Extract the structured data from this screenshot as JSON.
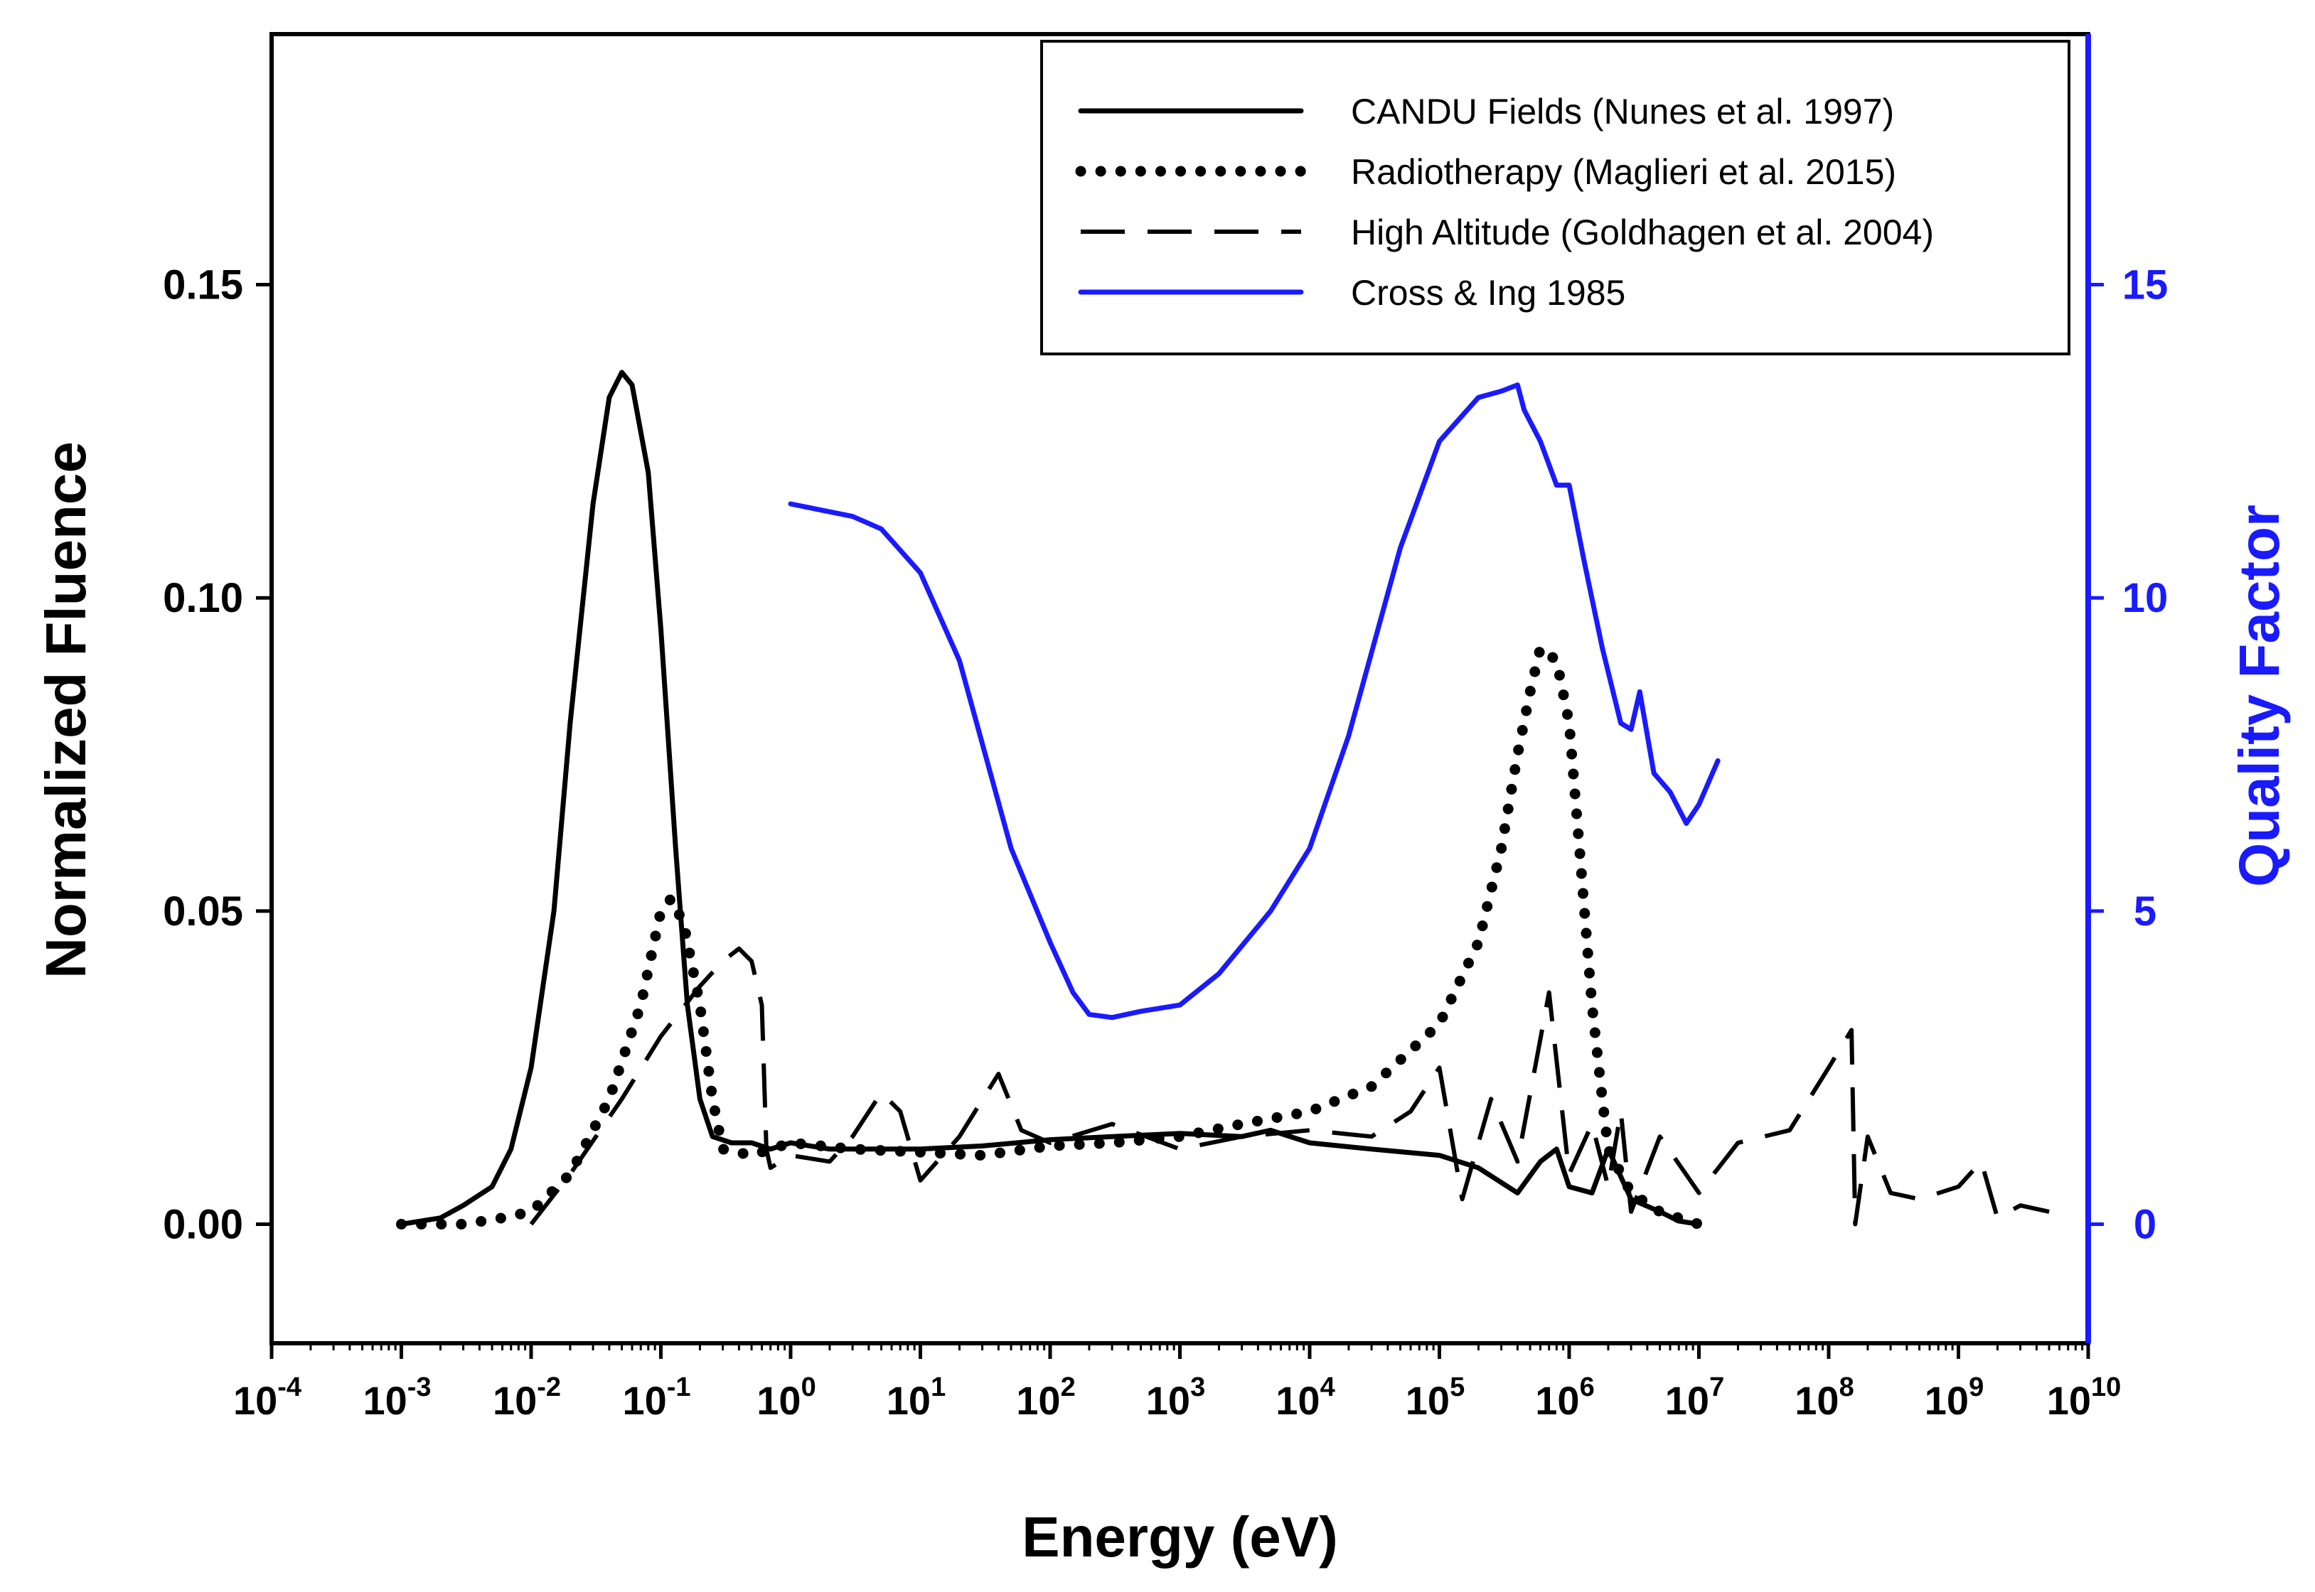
{
  "colors": {
    "axis": "#000000",
    "right_axis": "#1a1aff",
    "quality_factor": "#1a1aff"
  },
  "chart_data": {
    "type": "line",
    "title": "",
    "xlabel": "Energy (eV)",
    "ylabel_left": "Normalized Fluence",
    "ylabel_right": "Quality Factor",
    "x_scale": "log",
    "xlim": [
      0.0001,
      10000000000
    ],
    "ylim_left": [
      -0.019,
      0.19
    ],
    "ylim_right": [
      -1.9,
      19.0
    ],
    "grid": false,
    "legend_position": "top-right",
    "x_ticks": [
      {
        "value": 0.0001,
        "base": "10",
        "exp": "-4"
      },
      {
        "value": 0.001,
        "base": "10",
        "exp": "-3"
      },
      {
        "value": 0.01,
        "base": "10",
        "exp": "-2"
      },
      {
        "value": 0.1,
        "base": "10",
        "exp": "-1"
      },
      {
        "value": 1,
        "base": "10",
        "exp": "0"
      },
      {
        "value": 10,
        "base": "10",
        "exp": "1"
      },
      {
        "value": 100,
        "base": "10",
        "exp": "2"
      },
      {
        "value": 1000,
        "base": "10",
        "exp": "3"
      },
      {
        "value": 10000,
        "base": "10",
        "exp": "4"
      },
      {
        "value": 100000,
        "base": "10",
        "exp": "5"
      },
      {
        "value": 1000000,
        "base": "10",
        "exp": "6"
      },
      {
        "value": 10000000,
        "base": "10",
        "exp": "7"
      },
      {
        "value": 100000000,
        "base": "10",
        "exp": "8"
      },
      {
        "value": 1000000000,
        "base": "10",
        "exp": "9"
      },
      {
        "value": 10000000000,
        "base": "10",
        "exp": "10"
      }
    ],
    "y_left_ticks": [
      {
        "value": 0.0,
        "label": "0.00"
      },
      {
        "value": 0.05,
        "label": "0.05"
      },
      {
        "value": 0.1,
        "label": "0.10"
      },
      {
        "value": 0.15,
        "label": "0.15"
      }
    ],
    "y_right_ticks": [
      {
        "value": 0,
        "label": "0"
      },
      {
        "value": 5,
        "label": "5"
      },
      {
        "value": 10,
        "label": "10"
      },
      {
        "value": 15,
        "label": "15"
      }
    ],
    "series": [
      {
        "name": "CANDU Fields (Nunes et al. 1997)",
        "axis": "left",
        "style": "solid",
        "color": "#000000",
        "points": [
          [
            0.001,
            0.0
          ],
          [
            0.002,
            0.001
          ],
          [
            0.003,
            0.003
          ],
          [
            0.005,
            0.006
          ],
          [
            0.007,
            0.012
          ],
          [
            0.01,
            0.025
          ],
          [
            0.015,
            0.05
          ],
          [
            0.02,
            0.08
          ],
          [
            0.03,
            0.115
          ],
          [
            0.04,
            0.132
          ],
          [
            0.05,
            0.136
          ],
          [
            0.06,
            0.134
          ],
          [
            0.08,
            0.12
          ],
          [
            0.1,
            0.095
          ],
          [
            0.13,
            0.06
          ],
          [
            0.16,
            0.035
          ],
          [
            0.2,
            0.02
          ],
          [
            0.25,
            0.014
          ],
          [
            0.35,
            0.013
          ],
          [
            0.5,
            0.013
          ],
          [
            0.7,
            0.012
          ],
          [
            1,
            0.013
          ],
          [
            2,
            0.012
          ],
          [
            5,
            0.012
          ],
          [
            10,
            0.012
          ],
          [
            30,
            0.0125
          ],
          [
            100,
            0.0135
          ],
          [
            300,
            0.014
          ],
          [
            1000,
            0.0145
          ],
          [
            3000,
            0.014
          ],
          [
            5000,
            0.015
          ],
          [
            10000,
            0.013
          ],
          [
            30000,
            0.012
          ],
          [
            100000,
            0.011
          ],
          [
            200000,
            0.009
          ],
          [
            400000,
            0.005
          ],
          [
            600000,
            0.01
          ],
          [
            800000,
            0.012
          ],
          [
            1000000,
            0.006
          ],
          [
            1500000,
            0.005
          ],
          [
            2000000,
            0.012
          ],
          [
            3000000,
            0.004
          ],
          [
            5000000,
            0.002
          ],
          [
            7000000,
            0.0005
          ],
          [
            10000000,
            0.0
          ]
        ]
      },
      {
        "name": "Radiotherapy (Maglieri et al. 2015)",
        "axis": "left",
        "style": "dotted",
        "color": "#000000",
        "points": [
          [
            0.001,
            0.0
          ],
          [
            0.003,
            0.0
          ],
          [
            0.006,
            0.001
          ],
          [
            0.01,
            0.002
          ],
          [
            0.02,
            0.008
          ],
          [
            0.04,
            0.02
          ],
          [
            0.07,
            0.035
          ],
          [
            0.1,
            0.05
          ],
          [
            0.12,
            0.052
          ],
          [
            0.15,
            0.048
          ],
          [
            0.2,
            0.035
          ],
          [
            0.25,
            0.02
          ],
          [
            0.3,
            0.012
          ],
          [
            0.5,
            0.011
          ],
          [
            1,
            0.013
          ],
          [
            3,
            0.012
          ],
          [
            10,
            0.0115
          ],
          [
            30,
            0.011
          ],
          [
            100,
            0.0125
          ],
          [
            300,
            0.013
          ],
          [
            1000,
            0.014
          ],
          [
            3000,
            0.016
          ],
          [
            10000,
            0.018
          ],
          [
            30000,
            0.022
          ],
          [
            100000,
            0.032
          ],
          [
            200000,
            0.045
          ],
          [
            300000,
            0.06
          ],
          [
            400000,
            0.075
          ],
          [
            500000,
            0.085
          ],
          [
            600000,
            0.092
          ],
          [
            800000,
            0.09
          ],
          [
            1000000,
            0.08
          ],
          [
            1200000,
            0.06
          ],
          [
            1500000,
            0.035
          ],
          [
            1800000,
            0.02
          ],
          [
            2000000,
            0.012
          ],
          [
            3000000,
            0.005
          ],
          [
            5000000,
            0.002
          ],
          [
            7000000,
            0.001
          ],
          [
            10000000,
            0.0
          ]
        ]
      },
      {
        "name": "High Altitude (Goldhagen et al. 2004)",
        "axis": "left",
        "style": "dashed",
        "color": "#000000",
        "points": [
          [
            0.01,
            0.0
          ],
          [
            0.02,
            0.008
          ],
          [
            0.05,
            0.02
          ],
          [
            0.1,
            0.03
          ],
          [
            0.2,
            0.038
          ],
          [
            0.3,
            0.042
          ],
          [
            0.4,
            0.044
          ],
          [
            0.5,
            0.042
          ],
          [
            0.6,
            0.035
          ],
          [
            0.65,
            0.012
          ],
          [
            0.7,
            0.009
          ],
          [
            1,
            0.011
          ],
          [
            2,
            0.01
          ],
          [
            3,
            0.014
          ],
          [
            5,
            0.021
          ],
          [
            7,
            0.018
          ],
          [
            10,
            0.007
          ],
          [
            20,
            0.014
          ],
          [
            40,
            0.024
          ],
          [
            60,
            0.015
          ],
          [
            100,
            0.013
          ],
          [
            300,
            0.016
          ],
          [
            1000,
            0.012
          ],
          [
            3000,
            0.014
          ],
          [
            10000,
            0.015
          ],
          [
            30000,
            0.014
          ],
          [
            60000,
            0.018
          ],
          [
            100000,
            0.025
          ],
          [
            150000,
            0.004
          ],
          [
            250000,
            0.02
          ],
          [
            400000,
            0.01
          ],
          [
            700000,
            0.037
          ],
          [
            1000000,
            0.008
          ],
          [
            1500000,
            0.016
          ],
          [
            2000000,
            0.006
          ],
          [
            2500000,
            0.018
          ],
          [
            3000000,
            0.002
          ],
          [
            5000000,
            0.014
          ],
          [
            10000000,
            0.005
          ],
          [
            20000000,
            0.013
          ],
          [
            50000000,
            0.015
          ],
          [
            100000000,
            0.025
          ],
          [
            150000000,
            0.031
          ],
          [
            160000000,
            0.0
          ],
          [
            200000000,
            0.014
          ],
          [
            300000000,
            0.005
          ],
          [
            500000000,
            0.004
          ],
          [
            1000000000,
            0.006
          ],
          [
            1500000000,
            0.01
          ],
          [
            2000000000,
            0.001
          ],
          [
            3000000000,
            0.003
          ],
          [
            5000000000,
            0.002
          ]
        ]
      },
      {
        "name": "Cross & Ing 1985",
        "axis": "right",
        "style": "solid",
        "color": "#1a1aff",
        "points": [
          [
            1,
            11.5
          ],
          [
            3,
            11.3
          ],
          [
            5,
            11.1
          ],
          [
            10,
            10.4
          ],
          [
            20,
            9.0
          ],
          [
            50,
            6.0
          ],
          [
            100,
            4.5
          ],
          [
            150,
            3.7
          ],
          [
            200,
            3.35
          ],
          [
            300,
            3.3
          ],
          [
            500,
            3.4
          ],
          [
            1000,
            3.5
          ],
          [
            2000,
            4.0
          ],
          [
            5000,
            5.0
          ],
          [
            10000,
            6.0
          ],
          [
            20000,
            7.8
          ],
          [
            50000,
            10.8
          ],
          [
            100000,
            12.5
          ],
          [
            200000,
            13.2
          ],
          [
            300000,
            13.3
          ],
          [
            400000,
            13.4
          ],
          [
            450000,
            13.0
          ],
          [
            600000,
            12.5
          ],
          [
            800000,
            11.8
          ],
          [
            1000000,
            11.8
          ],
          [
            1300000,
            10.6
          ],
          [
            1800000,
            9.2
          ],
          [
            2500000,
            8.0
          ],
          [
            3000000,
            7.9
          ],
          [
            3500000,
            8.5
          ],
          [
            4500000,
            7.2
          ],
          [
            6000000,
            6.9
          ],
          [
            8000000,
            6.4
          ],
          [
            10000000,
            6.7
          ],
          [
            14000000,
            7.4
          ]
        ]
      }
    ]
  }
}
